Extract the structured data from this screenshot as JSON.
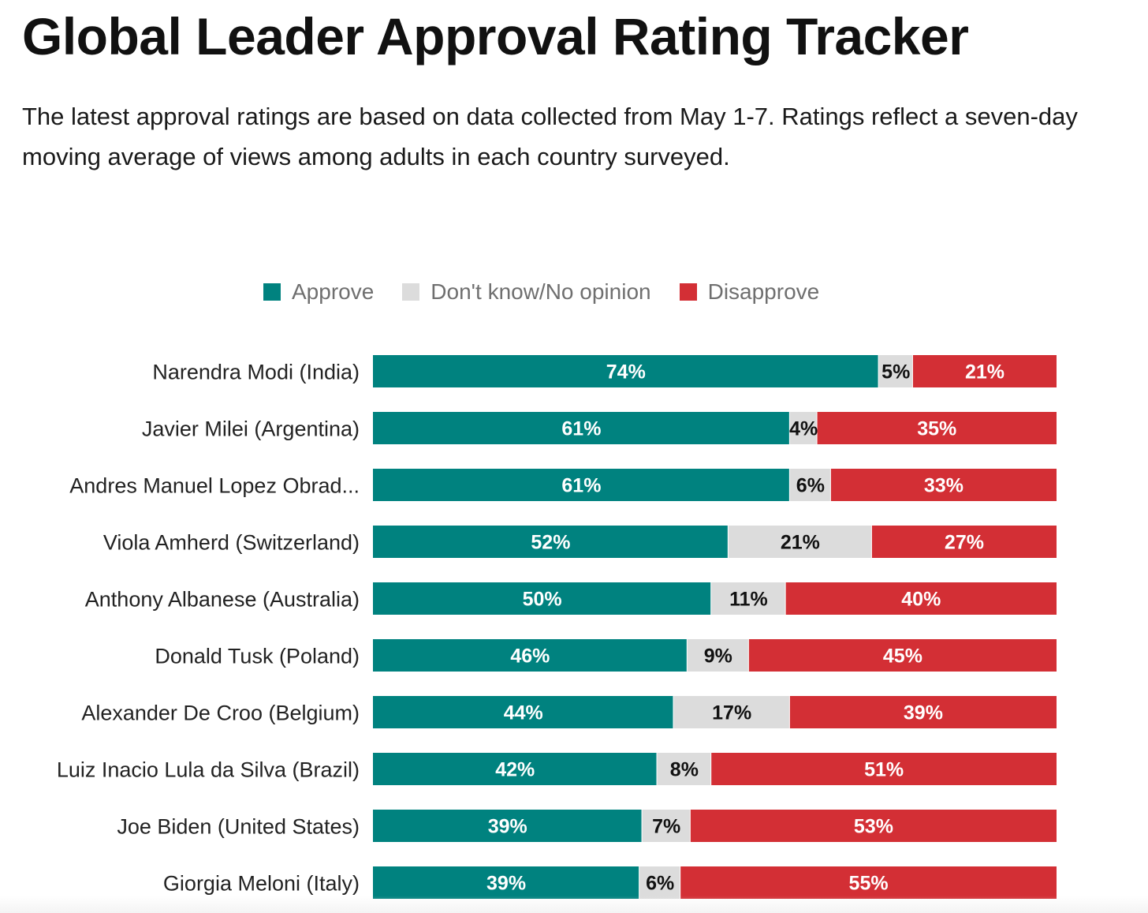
{
  "title": "Global Leader Approval Rating Tracker",
  "subtitle": "The latest approval ratings are based on data collected from May 1-7. Ratings reflect a seven-day moving average of views among adults in each country surveyed.",
  "legend": [
    {
      "label": "Approve",
      "color": "#00827f"
    },
    {
      "label": "Don't know/No opinion",
      "color": "#dcdcdc"
    },
    {
      "label": "Disapprove",
      "color": "#d32f35"
    }
  ],
  "chart_data": {
    "type": "bar",
    "orientation": "horizontal",
    "stacked": true,
    "categories": [
      "Narendra Modi (India)",
      "Javier Milei (Argentina)",
      "Andres Manuel Lopez Obrad...",
      "Viola Amherd (Switzerland)",
      "Anthony Albanese (Australia)",
      "Donald Tusk (Poland)",
      "Alexander De Croo (Belgium)",
      "Luiz Inacio Lula da Silva (Brazil)",
      "Joe Biden (United States)",
      "Giorgia Meloni (Italy)"
    ],
    "series": [
      {
        "name": "Approve",
        "color": "#00827f",
        "label_color": "#ffffff",
        "values": [
          74,
          61,
          61,
          52,
          50,
          46,
          44,
          42,
          39,
          39
        ]
      },
      {
        "name": "Don't know/No opinion",
        "color": "#dcdcdc",
        "label_color": "#111111",
        "values": [
          5,
          4,
          6,
          21,
          11,
          9,
          17,
          8,
          7,
          6
        ]
      },
      {
        "name": "Disapprove",
        "color": "#d32f35",
        "label_color": "#ffffff",
        "values": [
          21,
          35,
          33,
          27,
          40,
          45,
          39,
          51,
          53,
          55
        ]
      }
    ],
    "value_suffix": "%",
    "legend_position": "top"
  }
}
